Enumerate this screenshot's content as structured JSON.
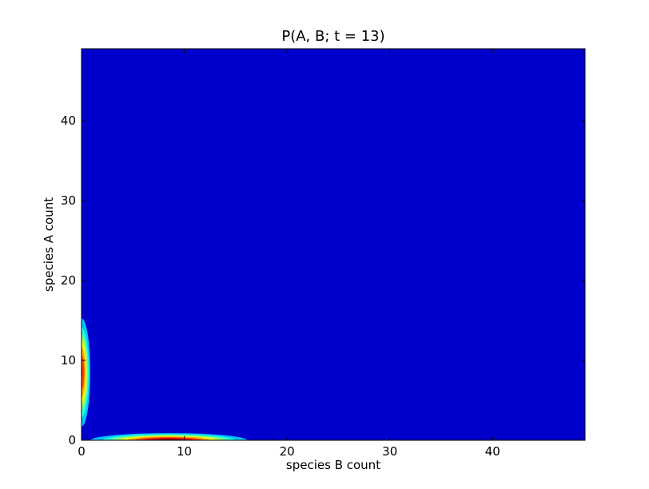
{
  "chart_data": {
    "type": "heatmap",
    "title": "P(A, B; t = 13)",
    "xlabel": "species B count",
    "ylabel": "species A count",
    "xlim": [
      0,
      49
    ],
    "ylim": [
      0,
      49
    ],
    "xticks": [
      "0",
      "10",
      "20",
      "30",
      "40"
    ],
    "yticks": [
      "0",
      "10",
      "20",
      "30",
      "40"
    ],
    "colormap": "jet",
    "grid": false,
    "background_color": "#0000cc",
    "peaks": [
      {
        "b": 0,
        "a": 8.5,
        "sigma_b": 0.35,
        "sigma_a": 2.8,
        "peak": 0.75
      },
      {
        "b": 8.5,
        "a": 0,
        "sigma_b": 3.0,
        "sigma_a": 0.35,
        "peak": 1.0
      }
    ],
    "contour_levels": [
      0.04,
      0.1,
      0.18,
      0.28,
      0.4,
      0.55,
      0.72,
      0.88
    ]
  }
}
